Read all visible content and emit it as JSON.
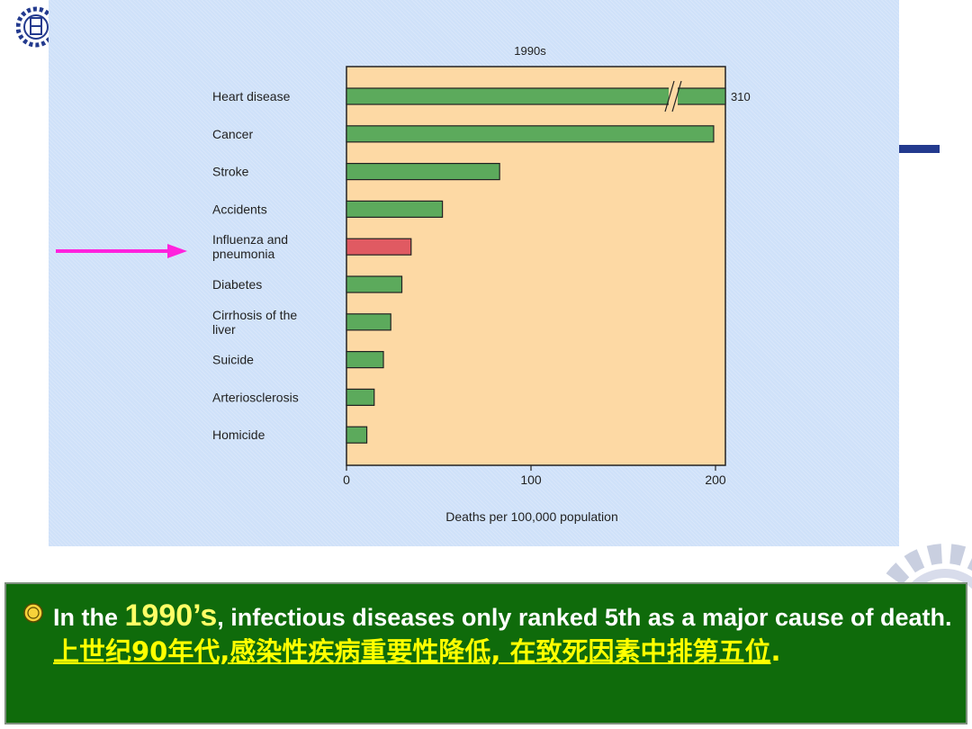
{
  "chart_data": {
    "type": "bar",
    "orientation": "horizontal",
    "title": "1990s",
    "xlabel": "Deaths per 100,000 population",
    "ylabel": "",
    "xlim": [
      0,
      200
    ],
    "x_ticks": [
      "0",
      "100",
      "200"
    ],
    "axis_break": true,
    "categories": [
      "Heart disease",
      "Cancer",
      "Stroke",
      "Accidents",
      "Influenza and pneumonia",
      "Diabetes",
      "Cirrhosis of the liver",
      "Suicide",
      "Arteriosclerosis",
      "Homicide"
    ],
    "category_lines": [
      [
        "Heart disease"
      ],
      [
        "Cancer"
      ],
      [
        "Stroke"
      ],
      [
        "Accidents"
      ],
      [
        "Influenza and",
        "pneumonia"
      ],
      [
        "Diabetes"
      ],
      [
        "Cirrhosis of the",
        "liver"
      ],
      [
        "Suicide"
      ],
      [
        "Arteriosclerosis"
      ],
      [
        "Homicide"
      ]
    ],
    "values": [
      310,
      199,
      83,
      52,
      35,
      30,
      24,
      20,
      15,
      11
    ],
    "data_labels": [
      "310",
      "",
      "",
      "",
      "",
      "",
      "",
      "",
      "",
      ""
    ],
    "highlight_index": 4,
    "colors": {
      "bar": "#5caa5c",
      "highlight": "#e05a62",
      "plot_bg": "#fdd9a4",
      "panel_bg": "#cfe1f9"
    }
  },
  "caption": {
    "prefix": "In the ",
    "year": "1990’s",
    "rest": ", infectious diseases only ranked 5th as a major cause of death. ",
    "chinese": "上世纪90年代,感染性疾病重要性降低, 在致死因素中排第五位",
    "period": "."
  },
  "colors": {
    "arrow": "#ff22dd",
    "caption_bg": "#0f6b0b",
    "caption_text": "#ffffff",
    "caption_highlight": "#ffff00"
  },
  "icons": {
    "top_left": "university-seal-icon",
    "bottom_right": "gear-icon",
    "bullet": "seal-bullet-icon"
  }
}
